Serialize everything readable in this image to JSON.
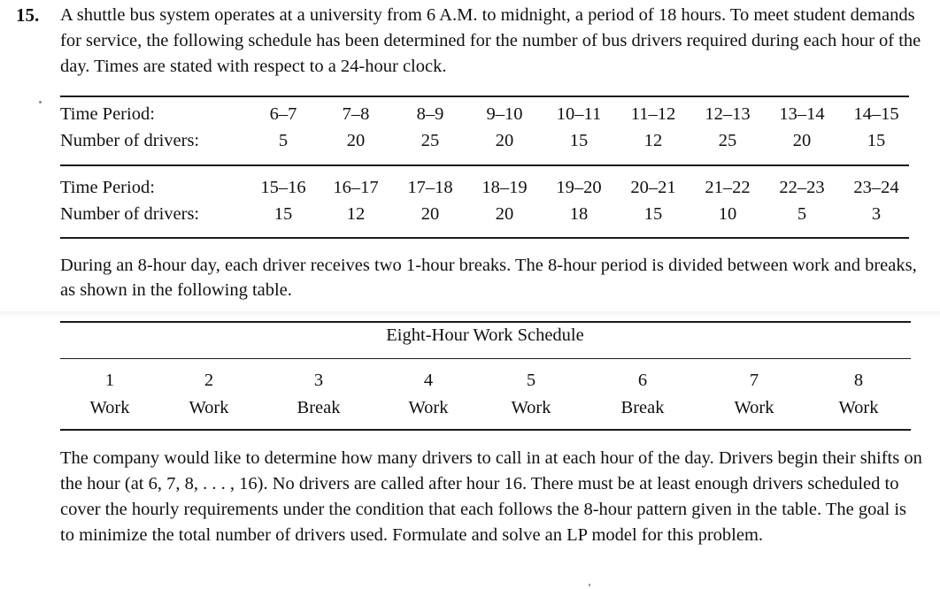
{
  "problem": {
    "number": "15.",
    "intro": "A shuttle bus system operates at a university from 6 A.M. to midnight, a period of 18 hours. To meet student demands for service, the following schedule has been determined for the number of bus drivers required during each hour of the day. Times are stated with respect to a 24-hour clock.",
    "break_text": "During an 8-hour day, each driver receives two 1-hour breaks. The 8-hour period is divided between work and breaks, as shown in the following table.",
    "closing": "The company would like to determine how many drivers to call in at each hour of the day. Drivers begin their shifts on the hour (at 6, 7, 8, . . . , 16). No drivers are called after hour 16. There must be at least enough drivers scheduled to cover the hourly requirements under the condition that each follows the 8-hour pattern given in the table. The goal is to minimize the total number of drivers used. Formulate and solve an LP model for this problem."
  },
  "hours_table": {
    "period_label": "Time Period:",
    "drivers_label": "Number of drivers:",
    "block1": {
      "periods": [
        "6–7",
        "7–8",
        "8–9",
        "9–10",
        "10–11",
        "11–12",
        "12–13",
        "13–14",
        "14–15"
      ],
      "drivers": [
        "5",
        "20",
        "25",
        "20",
        "15",
        "12",
        "25",
        "20",
        "15"
      ]
    },
    "block2": {
      "periods": [
        "15–16",
        "16–17",
        "17–18",
        "18–19",
        "19–20",
        "20–21",
        "21–22",
        "22–23",
        "23–24"
      ],
      "drivers": [
        "15",
        "12",
        "20",
        "20",
        "18",
        "15",
        "10",
        "5",
        "3"
      ]
    }
  },
  "work_schedule": {
    "title": "Eight-Hour Work Schedule",
    "hours": [
      "1",
      "2",
      "3",
      "4",
      "5",
      "6",
      "7",
      "8"
    ],
    "activities": [
      "Work",
      "Work",
      "Break",
      "Work",
      "Work",
      "Break",
      "Work",
      "Work"
    ]
  }
}
